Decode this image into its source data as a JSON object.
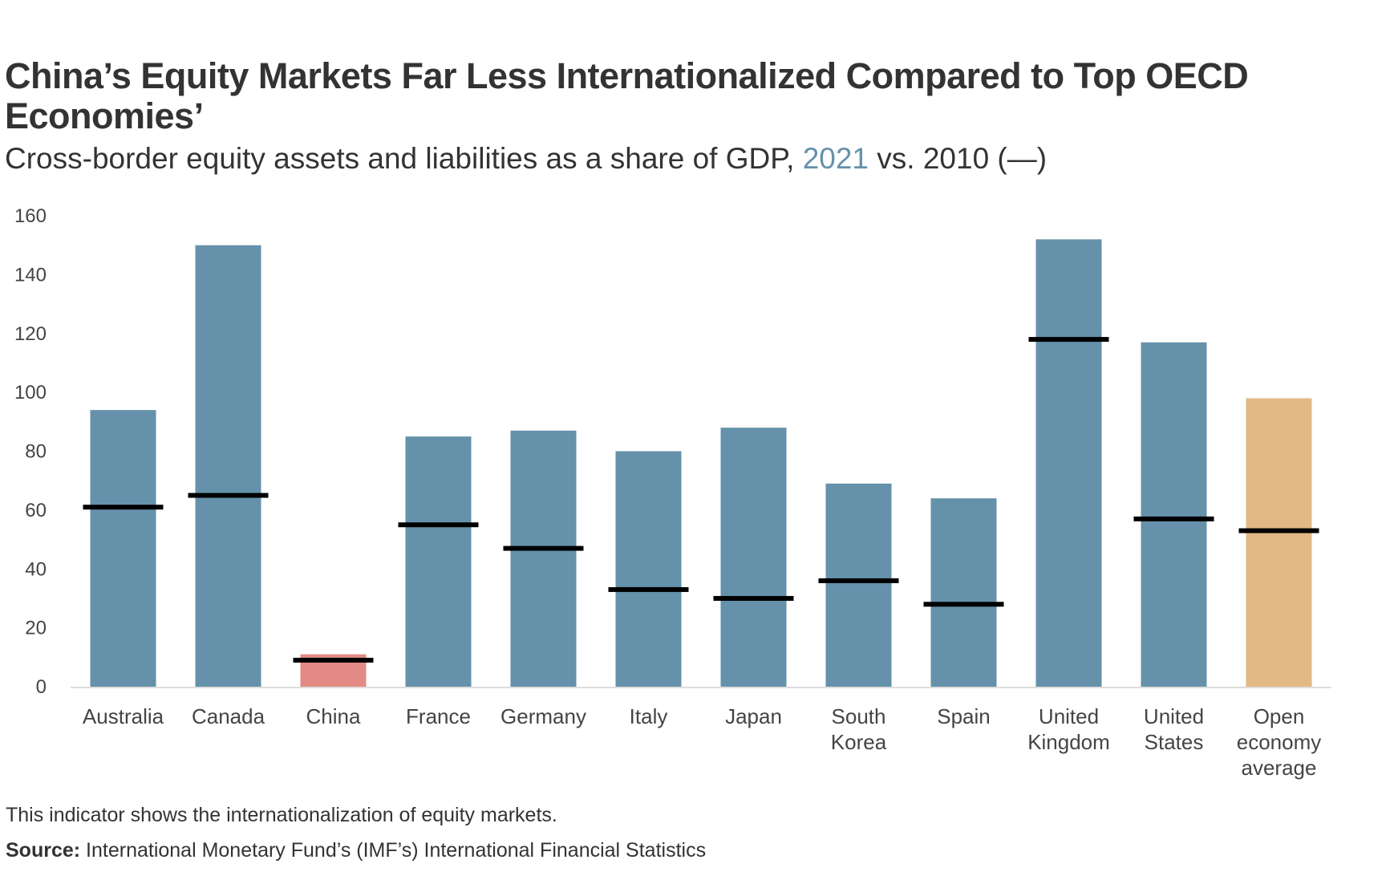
{
  "title": "China’s Equity Markets Far Less Internationalized Compared to Top OECD Economies’",
  "subtitle": {
    "prefix": "Cross-border equity assets and liabilities as a share of GDP, ",
    "highlight": "2021",
    "suffix": " vs. 2010 (—)"
  },
  "note": "This indicator shows the internationalization of equity markets.",
  "source": {
    "label": "Source:",
    "text": " International Monetary Fund’s (IMF’s) International Financial Statistics"
  },
  "colors": {
    "default_bar": "#6591aa",
    "china_bar": "#e38a84",
    "average_bar": "#e2b985",
    "marker": "#000000",
    "axis": "#dddddd"
  },
  "chart_data": {
    "type": "bar",
    "title": "China’s Equity Markets Far Less Internationalized Compared to Top OECD Economies’",
    "xlabel": "",
    "ylabel": "",
    "ylim": [
      0,
      160
    ],
    "yticks": [
      0,
      20,
      40,
      60,
      80,
      100,
      120,
      140,
      160
    ],
    "grid": false,
    "legend": "none (encoded in subtitle)",
    "categories": [
      [
        "Australia"
      ],
      [
        "Canada"
      ],
      [
        "China"
      ],
      [
        "France"
      ],
      [
        "Germany"
      ],
      [
        "Italy"
      ],
      [
        "Japan"
      ],
      [
        "South",
        "Korea"
      ],
      [
        "Spain"
      ],
      [
        "United",
        "Kingdom"
      ],
      [
        "United",
        "States"
      ],
      [
        "Open",
        "economy",
        "average"
      ]
    ],
    "series": [
      {
        "name": "2021",
        "kind": "bar",
        "values": [
          94,
          150,
          11,
          85,
          87,
          80,
          88,
          69,
          64,
          152,
          117,
          98
        ]
      },
      {
        "name": "2010",
        "kind": "marker-line",
        "values": [
          61,
          65,
          9,
          55,
          47,
          33,
          30,
          36,
          28,
          118,
          57,
          53
        ]
      }
    ],
    "bar_color_roles": [
      "default",
      "default",
      "china",
      "default",
      "default",
      "default",
      "default",
      "default",
      "default",
      "default",
      "default",
      "average"
    ]
  }
}
